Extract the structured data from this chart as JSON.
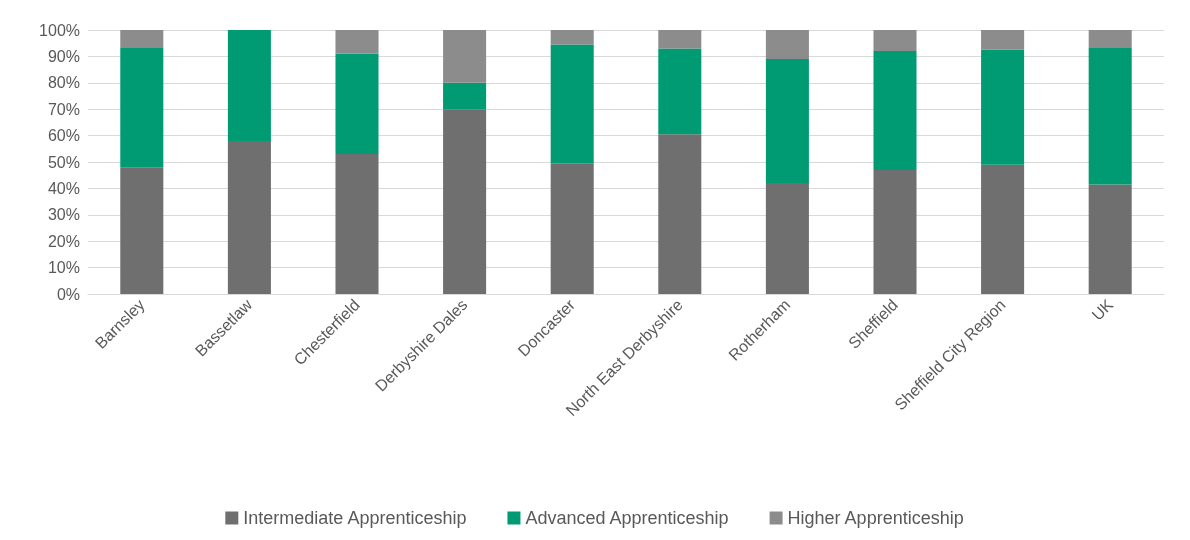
{
  "chart_data": {
    "type": "bar",
    "stacked": true,
    "categories": [
      "Barnsley",
      "Bassetlaw",
      "Chesterfield",
      "Derbyshire Dales",
      "Doncaster",
      "North East Derbyshire",
      "Rotherham",
      "Sheffield",
      "Sheffield City Region",
      "UK"
    ],
    "series": [
      {
        "name": "Intermediate Apprenticeship",
        "color": "#6f6f6f",
        "values": [
          48,
          58,
          53,
          70,
          49.5,
          60.5,
          42,
          47,
          49,
          41.5
        ]
      },
      {
        "name": "Advanced Apprenticeship",
        "color": "#009b72",
        "values": [
          45.5,
          42,
          38,
          10,
          45,
          32.5,
          47,
          45,
          43.5,
          52
        ]
      },
      {
        "name": "Higher Apprenticeship",
        "color": "#8c8c8c",
        "values": [
          6.5,
          0,
          9,
          20,
          5.5,
          7,
          11,
          8,
          7.5,
          6.5
        ]
      }
    ],
    "ylim": [
      0,
      100
    ],
    "yticks": [
      {
        "value": 0,
        "label": "0%"
      },
      {
        "value": 10,
        "label": "10%"
      },
      {
        "value": 20,
        "label": "20%"
      },
      {
        "value": 30,
        "label": "30%"
      },
      {
        "value": 40,
        "label": "40%"
      },
      {
        "value": 50,
        "label": "50%"
      },
      {
        "value": 60,
        "label": "60%"
      },
      {
        "value": 70,
        "label": "70%"
      },
      {
        "value": 80,
        "label": "80%"
      },
      {
        "value": 90,
        "label": "90%"
      },
      {
        "value": 100,
        "label": "100%"
      }
    ],
    "grid": "y",
    "legend": "bottom"
  }
}
